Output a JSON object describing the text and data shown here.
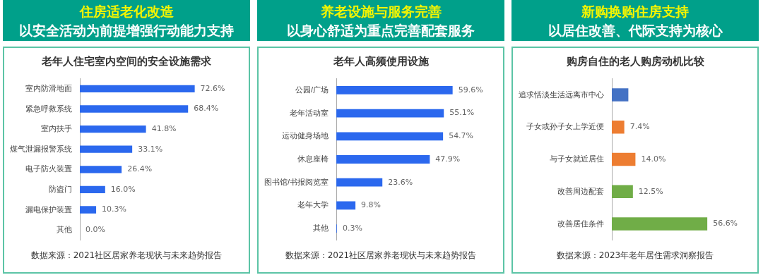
{
  "chart_data": [
    {
      "type": "bar",
      "orientation": "horizontal",
      "title": "老年人住宅室内空间的安全设施需求",
      "annotations": [
        "住房适老化改造",
        "以安全活动为前提增强行动能力支持",
        "数据来源：2021社区居家养老现状与未来趋势报告"
      ],
      "categories": [
        "室内防滑地面",
        "紧急呼救系统",
        "室内扶手",
        "煤气泄漏报警系统",
        "电子防火装置",
        "防盗门",
        "漏电保护装置",
        "其他"
      ],
      "values": [
        72.6,
        68.4,
        41.8,
        33.1,
        26.4,
        16.0,
        10.3,
        0.0
      ],
      "value_labels": [
        "72.6%",
        "68.4%",
        "41.8%",
        "33.1%",
        "26.4%",
        "16.0%",
        "10.3%",
        "0.0%"
      ],
      "color": "#2b68ee"
    },
    {
      "type": "bar",
      "orientation": "horizontal",
      "title": "老年人高频使用设施",
      "annotations": [
        "养老设施与服务完善",
        "以身心舒适为重点完善配套服务",
        "数据来源：2021社区居家养老现状与未来趋势报告"
      ],
      "categories": [
        "公园/广场",
        "老年活动室",
        "运动健身场地",
        "休息座椅",
        "图书馆/书报阅览室",
        "老年大学",
        "其他"
      ],
      "values": [
        59.6,
        55.1,
        54.7,
        47.9,
        23.6,
        9.8,
        0.3
      ],
      "value_labels": [
        "59.6%",
        "55.1%",
        "54.7%",
        "47.9%",
        "23.6%",
        "9.8%",
        "0.3%"
      ],
      "color": "#2b68ee"
    },
    {
      "type": "bar",
      "orientation": "horizontal",
      "title": "购房自住的老人购房动机比较",
      "annotations": [
        "新购换购住房支持",
        "以居住改善、代际支持为核心",
        "数据来源：2023年老年居住需求洞察报告"
      ],
      "categories": [
        "追求恬淡生活远离市中心",
        "子女或孙子女上学近便",
        "与子女就近居住",
        "改善周边配套",
        "改善居住条件"
      ],
      "values": [
        9.8,
        7.4,
        14.0,
        12.5,
        56.6
      ],
      "value_labels": [
        null,
        "7.4%",
        "14.0%",
        "12.5%",
        "56.6%"
      ],
      "colors": [
        "#4472c4",
        "#ed7d31",
        "#ed7d31",
        "#70ad47",
        "#70ad47"
      ]
    }
  ]
}
